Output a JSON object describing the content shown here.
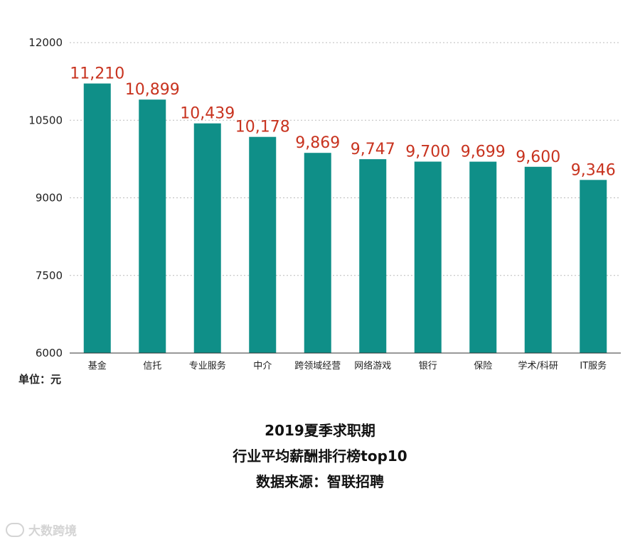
{
  "chart_data": {
    "type": "bar",
    "categories": [
      "基金",
      "信托",
      "专业服务",
      "中介",
      "跨领域经营",
      "网络游戏",
      "银行",
      "保险",
      "学术/科研",
      "IT服务"
    ],
    "values": [
      11210,
      10899,
      10439,
      10178,
      9869,
      9747,
      9700,
      9699,
      9600,
      9346
    ],
    "value_labels": [
      "11,210",
      "10,899",
      "10,439",
      "10,178",
      "9,869",
      "9,747",
      "9,700",
      "9,699",
      "9,600",
      "9,346"
    ],
    "ylim": [
      6000,
      12000
    ],
    "yticks": [
      6000,
      7500,
      9000,
      10500,
      12000
    ],
    "grid": true,
    "ylabel": "单位：元",
    "title_lines": [
      "2019夏季求职期",
      "行业平均薪酬排行榜top10",
      "数据来源：智联招聘"
    ],
    "colors": {
      "bar": "#0f8f88",
      "data_label": "#c8331f",
      "grid": "#bbbbbb",
      "axis": "#333333"
    }
  },
  "watermark": {
    "text": "大数跨境"
  }
}
